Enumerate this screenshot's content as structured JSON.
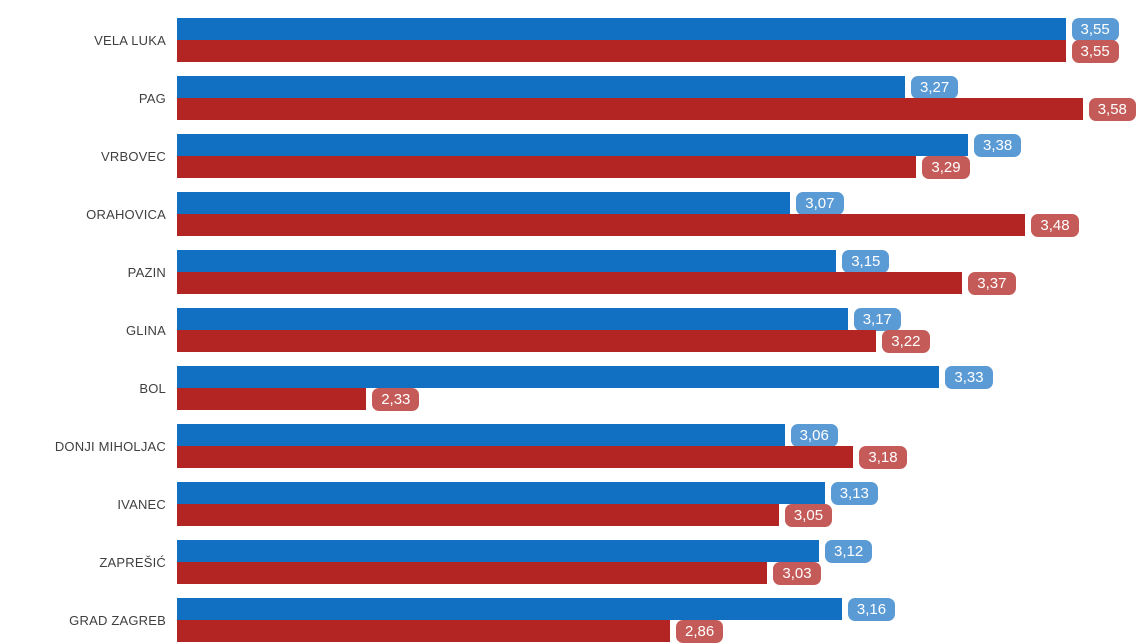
{
  "chart_data": {
    "type": "bar",
    "orientation": "horizontal",
    "title": "",
    "xlabel": "",
    "ylabel": "",
    "grid": false,
    "legend": false,
    "decimal_separator": ",",
    "xlim": [
      2.0,
      3.68
    ],
    "categories": [
      "VELA LUKA",
      "PAG",
      "VRBOVEC",
      "ORAHOVICA",
      "PAZIN",
      "GLINA",
      "BOL",
      "DONJI MIHOLJAC",
      "IVANEC",
      "ZAPREŠIĆ",
      "GRAD ZAGREB"
    ],
    "series": [
      {
        "name": "blue-series",
        "bar_color": "#1270c2",
        "badge_color": "#5b9bd5",
        "values": [
          3.55,
          3.27,
          3.38,
          3.07,
          3.15,
          3.17,
          3.33,
          3.06,
          3.13,
          3.12,
          3.16
        ],
        "value_labels": [
          "3,55",
          "3,27",
          "3,38",
          "3,07",
          "3,15",
          "3,17",
          "3,33",
          "3,06",
          "3,13",
          "3,12",
          "3,16"
        ]
      },
      {
        "name": "red-series",
        "bar_color": "#b22523",
        "badge_color": "#c55b58",
        "values": [
          3.55,
          3.58,
          3.29,
          3.48,
          3.37,
          3.22,
          2.33,
          3.18,
          3.05,
          3.03,
          2.86
        ],
        "value_labels": [
          "3,55",
          "3,58",
          "3,29",
          "3,48",
          "3,37",
          "3,22",
          "2,33",
          "3,18",
          "3,05",
          "3,03",
          "2,86"
        ]
      }
    ]
  }
}
